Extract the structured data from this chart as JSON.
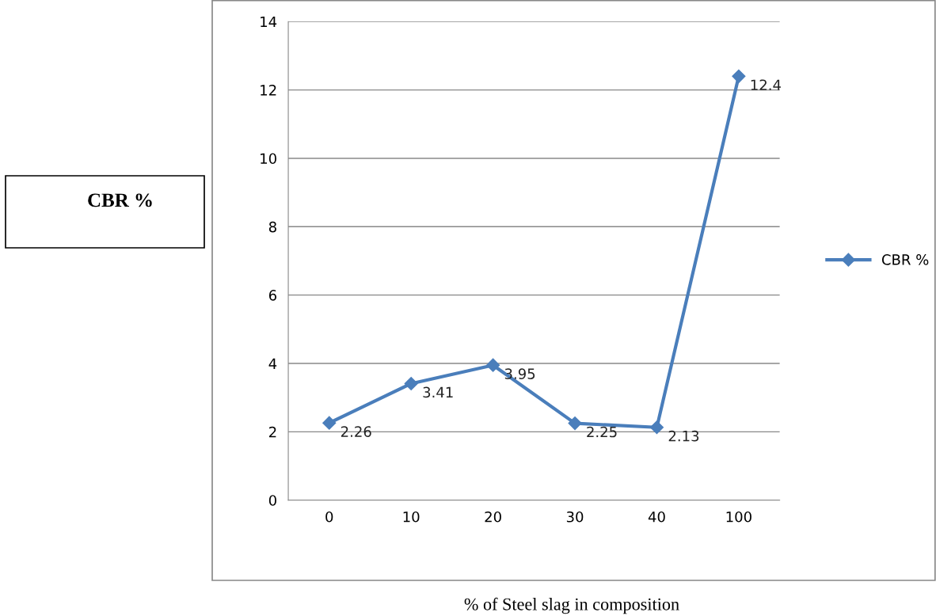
{
  "chart_data": {
    "type": "line",
    "annotations": [
      "CBR %"
    ],
    "xlabel": "% of Steel slag in composition",
    "categories": [
      "0",
      "10",
      "20",
      "30",
      "40",
      "100"
    ],
    "series": [
      {
        "name": "CBR %",
        "color": "#4a7ebb",
        "values": [
          2.26,
          3.41,
          3.95,
          2.25,
          2.13,
          12.4
        ]
      }
    ],
    "ylim": [
      0,
      14
    ],
    "yticks": [
      0,
      2,
      4,
      6,
      8,
      10,
      12,
      14
    ],
    "grid": "y",
    "legend": "right",
    "marker": "diamond",
    "line_style": "solid",
    "data_labels": true
  }
}
